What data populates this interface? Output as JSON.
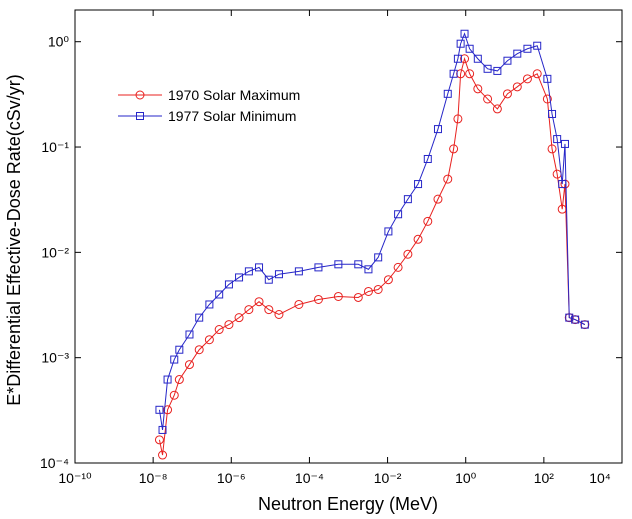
{
  "chart_data": {
    "type": "line",
    "x_label": "Neutron Energy (MeV)",
    "y_label": "E*Differential Effective-Dose Rate(cSv/yr)",
    "xscale": "log",
    "yscale": "log",
    "xlim": [
      1e-10,
      10000
    ],
    "ylim": [
      0.0001,
      2
    ],
    "xticks": [
      {
        "value": 1e-10,
        "label": "10⁻¹⁰"
      },
      {
        "value": 1e-08,
        "label": "10⁻⁸"
      },
      {
        "value": 1e-06,
        "label": "10⁻⁶"
      },
      {
        "value": 0.0001,
        "label": "10⁻⁴"
      },
      {
        "value": 0.01,
        "label": "10⁻²"
      },
      {
        "value": 1,
        "label": "10⁰"
      },
      {
        "value": 100,
        "label": "10²"
      },
      {
        "value": 10000,
        "label": "10⁴"
      }
    ],
    "yticks": [
      {
        "value": 0.0001,
        "label": "10⁻⁴"
      },
      {
        "value": 0.001,
        "label": "10⁻³"
      },
      {
        "value": 0.01,
        "label": "10⁻²"
      },
      {
        "value": 0.1,
        "label": "10⁻¹"
      },
      {
        "value": 1,
        "label": "10⁰"
      }
    ],
    "legend": "upper left",
    "x": [
      1.45e-08,
      1.74e-08,
      2.34e-08,
      3.47e-08,
      4.68e-08,
      8.51e-08,
      1.51e-07,
      2.75e-07,
      4.9e-07,
      8.71e-07,
      1.58e-06,
      2.82e-06,
      5.13e-06,
      9.12e-06,
      1.66e-05,
      5.37e-05,
      0.00017,
      0.00055,
      0.00178,
      0.00324,
      0.00575,
      0.0105,
      0.0186,
      0.0331,
      0.0603,
      0.107,
      0.195,
      0.347,
      0.49,
      0.631,
      0.741,
      0.933,
      1.26,
      2.04,
      3.63,
      6.46,
      11.7,
      20.9,
      38.0,
      67.6,
      123,
      162,
      219,
      295,
      347,
      447,
      631,
      1120
    ],
    "series": [
      {
        "name": "1970 Solar Maximum",
        "color": "#e8211f",
        "marker": "circle",
        "values": [
          0.000166,
          0.000119,
          0.00032,
          0.00044,
          0.00062,
          0.00086,
          0.00119,
          0.00148,
          0.00185,
          0.00206,
          0.0024,
          0.00286,
          0.0034,
          0.00286,
          0.00257,
          0.0032,
          0.00357,
          0.00381,
          0.00373,
          0.00425,
          0.00444,
          0.0055,
          0.0072,
          0.0096,
          0.0133,
          0.0197,
          0.032,
          0.0496,
          0.096,
          0.185,
          0.496,
          0.689,
          0.496,
          0.357,
          0.286,
          0.23,
          0.32,
          0.373,
          0.444,
          0.496,
          0.286,
          0.096,
          0.0553,
          0.0257,
          0.0445,
          0.0024,
          0.0023,
          0.00206
        ]
      },
      {
        "name": "1977 Solar Minimum",
        "color": "#2626c8",
        "marker": "square",
        "values": [
          0.00032,
          0.000206,
          0.00062,
          0.00096,
          0.00119,
          0.00166,
          0.0024,
          0.0032,
          0.00398,
          0.00496,
          0.00578,
          0.0066,
          0.0072,
          0.0055,
          0.0062,
          0.0066,
          0.0072,
          0.0077,
          0.0077,
          0.0069,
          0.00896,
          0.0158,
          0.023,
          0.032,
          0.0445,
          0.077,
          0.148,
          0.32,
          0.496,
          0.689,
          0.957,
          1.19,
          0.857,
          0.689,
          0.553,
          0.528,
          0.66,
          0.77,
          0.857,
          0.916,
          0.444,
          0.206,
          0.119,
          0.0445,
          0.107,
          0.0024,
          0.0023,
          0.00206
        ]
      }
    ]
  }
}
